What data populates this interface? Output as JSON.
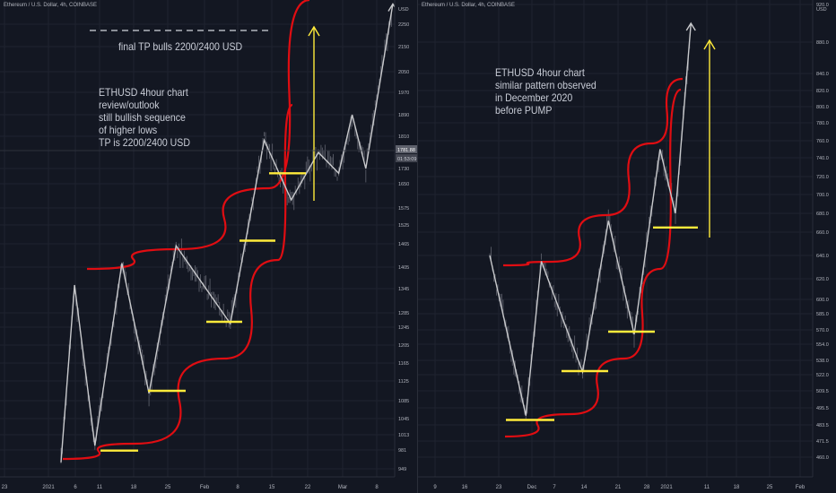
{
  "colors": {
    "background": "#131722",
    "candle": "#5d606b",
    "curve": "#e00d12",
    "support": "#ffeb3b",
    "zigzag": "#c8c9cc",
    "tp_arrow": "#ffeb3b",
    "axis_text": "#b2b5be",
    "grid": "#1f2330"
  },
  "chart_data": [
    {
      "type": "line",
      "panel": "left",
      "header": "Ethereum / U.S. Dollar, 4h, COINBASE",
      "annotations": [
        "final TP bulls 2200/2400 USD",
        "ETHUSD 4hour chart\nreview/outlook\nstill bullish sequence\nof higher lows\nTP is 2200/2400 USD"
      ],
      "price_scale_label": "USD",
      "y_ticks": [
        2250,
        2150,
        2050,
        1970,
        1890,
        1810,
        1730,
        1650,
        1575,
        1525,
        1465,
        1405,
        1345,
        1285,
        1245,
        1205,
        1165,
        1125,
        1085,
        1045,
        1013,
        981,
        949
      ],
      "x_ticks": [
        "23",
        "2021",
        "6",
        "11",
        "18",
        "25",
        "Feb",
        "8",
        "15",
        "22",
        "Mar",
        "8"
      ],
      "current_price_label": "1781.88",
      "current_time_label": "01:53:09",
      "zigzag_swings": [
        {
          "time": "Jan 2",
          "price": 960
        },
        {
          "time": "Jan 4",
          "price": 1355
        },
        {
          "time": "Jan 7",
          "price": 990
        },
        {
          "time": "Jan 11",
          "price": 1415
        },
        {
          "time": "Jan 15",
          "price": 1100
        },
        {
          "time": "Jan 19",
          "price": 1460
        },
        {
          "time": "Jan 27",
          "price": 1255
        },
        {
          "time": "Feb 1",
          "price": 1800
        },
        {
          "time": "Feb 5",
          "price": 1600
        },
        {
          "time": "Feb 9",
          "price": 1770
        },
        {
          "time": "Feb 12",
          "price": 1705
        },
        {
          "time": "Feb 14",
          "price": 1890
        },
        {
          "time": "Feb 16",
          "price": 1730
        },
        {
          "time": "Feb 20",
          "price": 2340
        }
      ],
      "support_levels": [
        980,
        1105,
        1260,
        1475,
        1705
      ]
    },
    {
      "type": "line",
      "panel": "right",
      "header": "Ethereum / U.S. Dollar, 4h, COINBASE",
      "annotations": [
        "ETHUSD 4hour chart\nsimilar pattern observed\nin December 2020\nbefore PUMP"
      ],
      "price_scale_label": "USD",
      "y_ticks": [
        920.0,
        880.0,
        840.0,
        820.0,
        800.0,
        780.0,
        760.0,
        740.0,
        720.0,
        700.0,
        680.0,
        660.0,
        640.0,
        620.0,
        600.0,
        585.0,
        570.0,
        554.0,
        538.0,
        522.0,
        509.5,
        495.5,
        483.5,
        471.5,
        460.0
      ],
      "x_ticks": [
        "9",
        "16",
        "23",
        "Dec",
        "7",
        "14",
        "21",
        "28",
        "2021",
        "11",
        "18",
        "25",
        "Feb"
      ],
      "zigzag_swings": [
        {
          "time": "Nov 25",
          "price": 640
        },
        {
          "time": "Dec 2",
          "price": 490
        },
        {
          "time": "Dec 5",
          "price": 635
        },
        {
          "time": "Dec 13",
          "price": 525
        },
        {
          "time": "Dec 18",
          "price": 672
        },
        {
          "time": "Dec 23",
          "price": 565
        },
        {
          "time": "Dec 28",
          "price": 750
        },
        {
          "time": "Dec 31",
          "price": 680
        },
        {
          "time": "Jan 3",
          "price": 900
        }
      ],
      "support_levels": [
        487,
        526,
        568,
        665
      ]
    }
  ]
}
